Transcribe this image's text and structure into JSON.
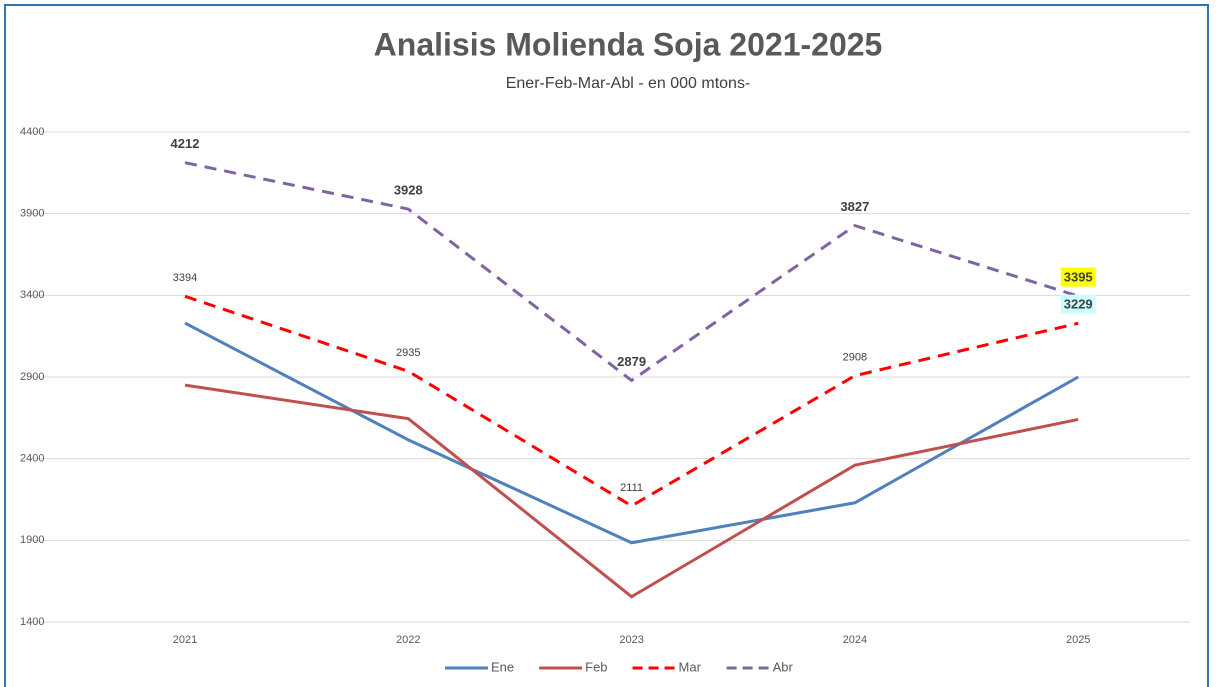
{
  "chart_data": {
    "type": "line",
    "title": "Analisis Molienda Soja 2021-2025",
    "subtitle": "Ener-Feb-Mar-Abl - en 000 mtons-",
    "categories": [
      "2021",
      "2022",
      "2023",
      "2024",
      "2025"
    ],
    "series": [
      {
        "name": "Ene",
        "color": "#4f81bd",
        "dashed": false,
        "values": [
          3230,
          2515,
          1885,
          2130,
          2900
        ]
      },
      {
        "name": "Feb",
        "color": "#c0504d",
        "dashed": false,
        "values": [
          2850,
          2645,
          1555,
          2360,
          2640
        ]
      },
      {
        "name": "Mar",
        "color": "#ff0000",
        "dashed": true,
        "data_labels": true,
        "values": [
          3394,
          2935,
          2111,
          2908,
          3229
        ]
      },
      {
        "name": "Abr",
        "color": "#8064a2",
        "dashed": true,
        "data_labels": true,
        "values": [
          4212,
          3928,
          2879,
          3827,
          3395
        ]
      }
    ],
    "ylim": [
      1400,
      4400
    ],
    "yticks": [
      1400,
      1900,
      2400,
      2900,
      3400,
      3900,
      4400
    ],
    "grid": true,
    "legend": "bottom"
  }
}
